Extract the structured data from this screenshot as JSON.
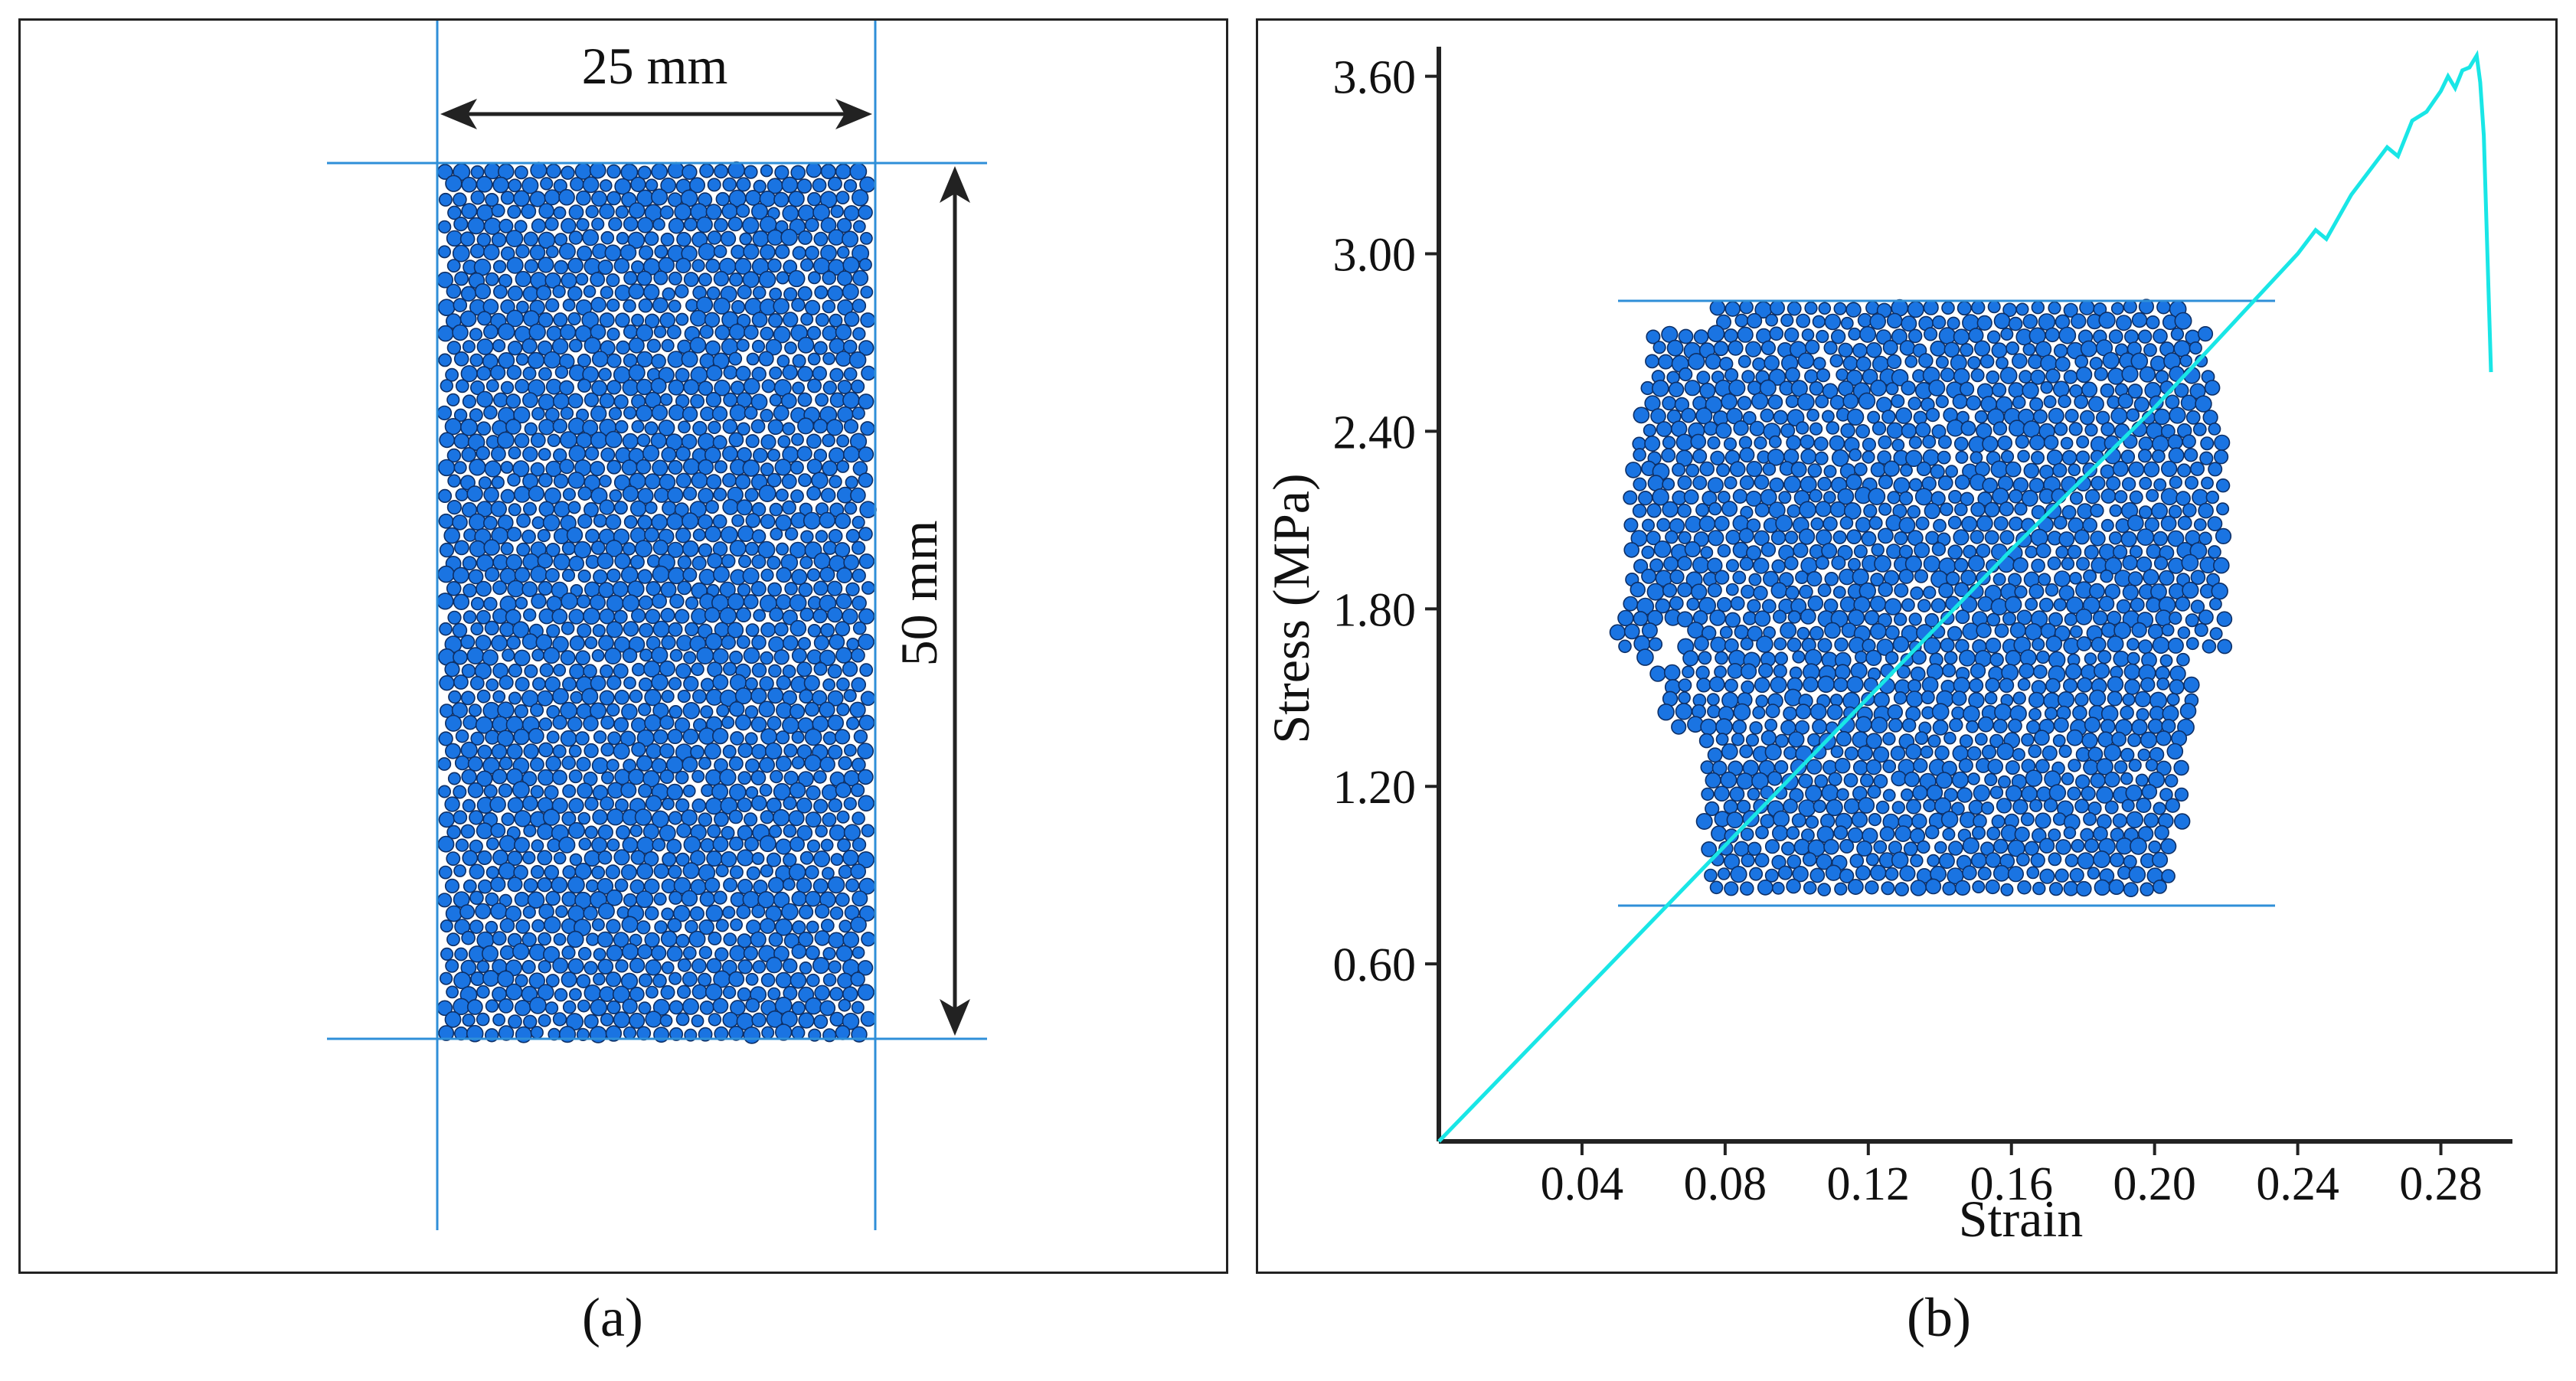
{
  "panel_a": {
    "caption": "(a)",
    "width_label": "25 mm",
    "height_label": "50 mm"
  },
  "panel_b": {
    "caption": "(b)"
  },
  "colors": {
    "particle_fill": "#1a74e2",
    "particle_stroke": "#0d2f66",
    "guide_line": "#2f8fd8",
    "curve": "#19e6e6",
    "axis": "#222222",
    "arrow": "#222222"
  },
  "chart_data": {
    "type": "line",
    "title": "",
    "xlabel": "Strain",
    "ylabel": "Stress (MPa)",
    "xlim": [
      0.0,
      0.3
    ],
    "ylim": [
      0.0,
      3.7
    ],
    "xticks": [
      0.04,
      0.08,
      0.12,
      0.16,
      0.2,
      0.24,
      0.28
    ],
    "xtick_labels": [
      "0.04",
      "0.08",
      "0.12",
      "0.16",
      "0.20",
      "0.24",
      "0.28"
    ],
    "yticks": [
      0.6,
      1.2,
      1.8,
      2.4,
      3.0,
      3.6
    ],
    "ytick_labels": [
      "0.60",
      "1.20",
      "1.80",
      "2.40",
      "3.00",
      "3.60"
    ],
    "grid": false,
    "series": [
      {
        "x": [
          0.0,
          0.04,
          0.08,
          0.12,
          0.16,
          0.2,
          0.24,
          0.245,
          0.248,
          0.255,
          0.26,
          0.265,
          0.268,
          0.272,
          0.276,
          0.28,
          0.282,
          0.284,
          0.286,
          0.288,
          0.29,
          0.291,
          0.292,
          0.293,
          0.294
        ],
        "y": [
          0.0,
          0.5,
          1.0,
          1.5,
          2.0,
          2.48,
          3.0,
          3.08,
          3.05,
          3.2,
          3.28,
          3.36,
          3.33,
          3.45,
          3.48,
          3.55,
          3.6,
          3.56,
          3.62,
          3.63,
          3.67,
          3.58,
          3.4,
          3.0,
          2.6
        ]
      }
    ]
  }
}
